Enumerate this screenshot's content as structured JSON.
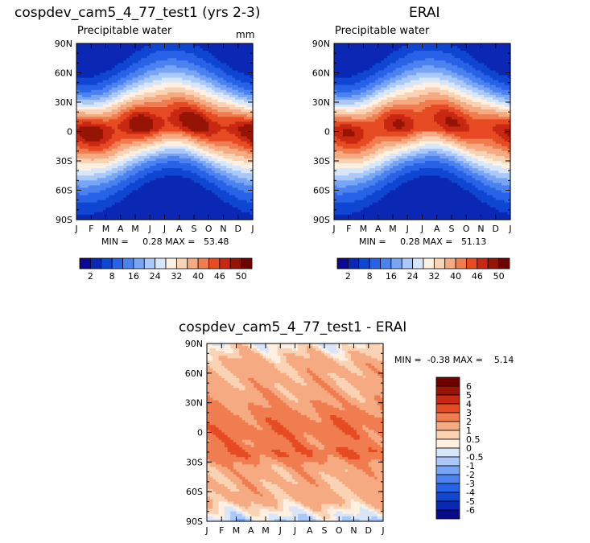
{
  "panels": [
    {
      "id": "model",
      "title": "cospdev_cam5_4_77_test1 (yrs 2-3)",
      "subtitle": "Precipitable water",
      "units": "mm",
      "stats": {
        "min_label": "MIN =",
        "min": "0.28",
        "max_label": "MAX =",
        "max": "53.48"
      }
    },
    {
      "id": "obs",
      "title": "ERAI",
      "subtitle": "Precipitable water",
      "units": "",
      "stats": {
        "min_label": "MIN =",
        "min": "0.28",
        "max_label": "MAX =",
        "max": "51.13"
      }
    },
    {
      "id": "diff",
      "title": "cospdev_cam5_4_77_test1 - ERAI",
      "stats": {
        "min_label": "MIN =",
        "min": "-0.38",
        "max_label": "MAX =",
        "max": "5.14"
      }
    }
  ],
  "chart_data": [
    {
      "type": "heatmap",
      "name": "model",
      "x_ticks": [
        "J",
        "F",
        "M",
        "A",
        "M",
        "J",
        "J",
        "A",
        "S",
        "O",
        "N",
        "D",
        "J"
      ],
      "y_ticks": [
        "90N",
        "60N",
        "30N",
        "0",
        "30S",
        "60S",
        "90S"
      ],
      "ylim": [
        -90,
        90
      ],
      "levels": [
        2,
        5,
        8,
        12,
        16,
        20,
        24,
        28,
        32,
        36,
        40,
        43,
        46,
        48,
        50
      ],
      "colorbar_labels": [
        "2",
        "8",
        "16",
        "24",
        "32",
        "40",
        "46",
        "50"
      ],
      "min": 0.28,
      "max": 53.48
    },
    {
      "type": "heatmap",
      "name": "obs",
      "x_ticks": [
        "J",
        "F",
        "M",
        "A",
        "M",
        "J",
        "J",
        "A",
        "S",
        "O",
        "N",
        "D",
        "J"
      ],
      "y_ticks": [
        "90N",
        "60N",
        "30N",
        "0",
        "30S",
        "60S",
        "90S"
      ],
      "ylim": [
        -90,
        90
      ],
      "levels": [
        2,
        5,
        8,
        12,
        16,
        20,
        24,
        28,
        32,
        36,
        40,
        43,
        46,
        48,
        50
      ],
      "colorbar_labels": [
        "2",
        "8",
        "16",
        "24",
        "32",
        "40",
        "46",
        "50"
      ],
      "min": 0.28,
      "max": 51.13
    },
    {
      "type": "heatmap",
      "name": "difference",
      "x_ticks": [
        "J",
        "F",
        "M",
        "A",
        "M",
        "J",
        "J",
        "A",
        "S",
        "O",
        "N",
        "D",
        "J"
      ],
      "y_ticks": [
        "90N",
        "60N",
        "30N",
        "0",
        "30S",
        "60S",
        "90S"
      ],
      "ylim": [
        -90,
        90
      ],
      "levels": [
        -6,
        -5,
        -4,
        -3,
        -2,
        -1,
        -0.5,
        0,
        0.5,
        1,
        2,
        3,
        4,
        5,
        6
      ],
      "colorbar_labels": [
        "6",
        "5",
        "4",
        "3",
        "2",
        "1",
        "0.5",
        "0",
        "-0.5",
        "-1",
        "-2",
        "-3",
        "-4",
        "-5",
        "-6"
      ],
      "min": -0.38,
      "max": 5.14
    }
  ],
  "colors": {
    "seq": [
      "#0a0a8c",
      "#0a28b4",
      "#0f46d2",
      "#2862e6",
      "#4b82f0",
      "#78a5f5",
      "#aac8fa",
      "#d7e6fa",
      "#fff0e1",
      "#fad2b4",
      "#f5aa82",
      "#f07d50",
      "#e64b23",
      "#c82812",
      "#961405",
      "#6e0000"
    ],
    "div": [
      "#0a0a8c",
      "#0a28b4",
      "#0f46d2",
      "#2862e6",
      "#4b82f0",
      "#78a5f5",
      "#aac8fa",
      "#d7e6fa",
      "#fff0e1",
      "#fad2b4",
      "#f5aa82",
      "#f07d50",
      "#e64b23",
      "#c82812",
      "#961405",
      "#6e0000"
    ]
  }
}
